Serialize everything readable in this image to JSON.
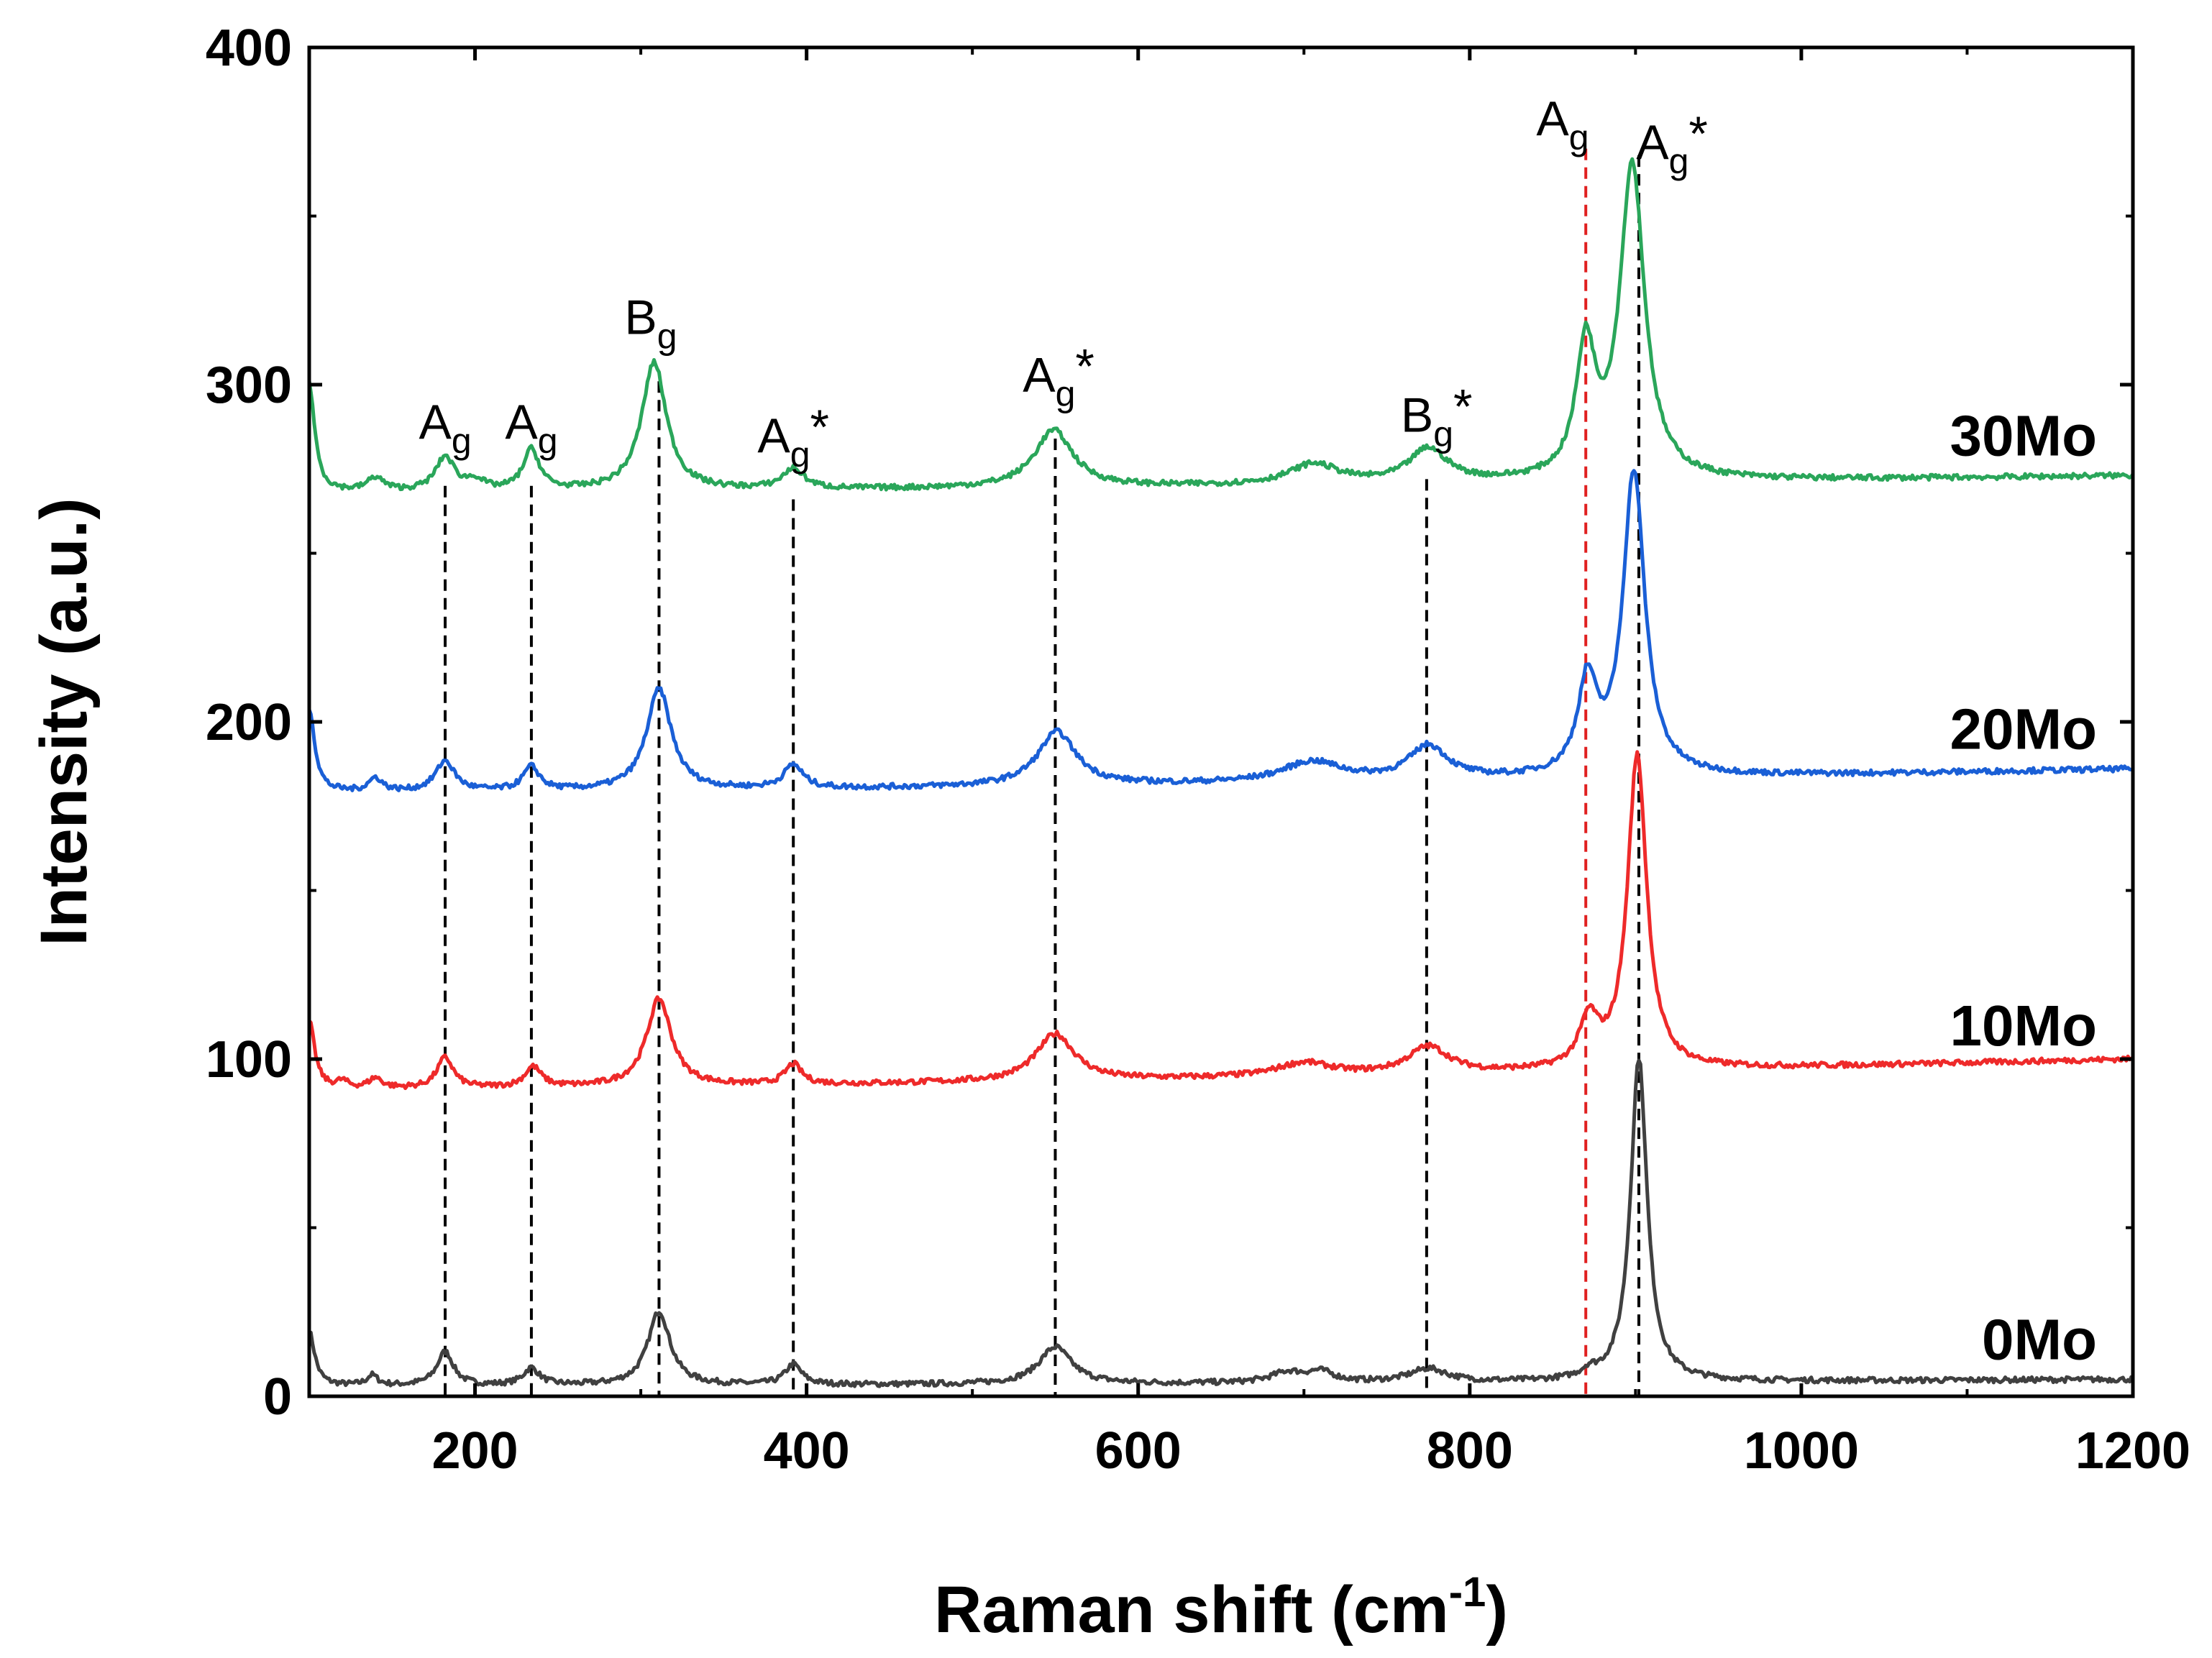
{
  "chart_data": {
    "type": "line",
    "xlabel": {
      "main": "Raman shift (cm",
      "sup": "-1",
      "close": ")"
    },
    "ylabel": "Intensity (a.u.)",
    "xlim": [
      100,
      1200
    ],
    "ylim": [
      0,
      400
    ],
    "x_ticks": [
      200,
      400,
      600,
      800,
      1000,
      1200
    ],
    "y_ticks": [
      0,
      100,
      200,
      300,
      400
    ],
    "grid": false,
    "series": [
      {
        "name": "0Mo",
        "color": "#404040",
        "baseline": 3,
        "end": 5,
        "peaks": [
          [
            100,
            16,
            4
          ],
          [
            138,
            3,
            4
          ],
          [
            182,
            10,
            6
          ],
          [
            234,
            5,
            6
          ],
          [
            311,
            22,
            8
          ],
          [
            392,
            6,
            6
          ],
          [
            550,
            11,
            12
          ],
          [
            690,
            3,
            12
          ],
          [
            710,
            3,
            10
          ],
          [
            775,
            4,
            14
          ],
          [
            872,
            2,
            5
          ],
          [
            902,
            96,
            6
          ]
        ]
      },
      {
        "name": "10Mo",
        "color": "#ee2a2a",
        "baseline": 91,
        "end": 100,
        "peaks": [
          [
            100,
            20,
            4
          ],
          [
            120,
            2,
            4
          ],
          [
            140,
            3,
            5
          ],
          [
            182,
            9,
            6
          ],
          [
            235,
            6,
            6
          ],
          [
            311,
            26,
            9
          ],
          [
            392,
            6,
            6
          ],
          [
            550,
            14,
            14
          ],
          [
            700,
            4,
            20
          ],
          [
            775,
            8,
            15
          ],
          [
            872,
            14,
            7
          ],
          [
            901,
            93,
            7
          ]
        ]
      },
      {
        "name": "20Mo",
        "color": "#1a5fd6",
        "baseline": 179,
        "end": 186,
        "peaks": [
          [
            100,
            25,
            4
          ],
          [
            140,
            4,
            5
          ],
          [
            182,
            9,
            7
          ],
          [
            234,
            7,
            6
          ],
          [
            311,
            30,
            9
          ],
          [
            392,
            7,
            7
          ],
          [
            551,
            16,
            14
          ],
          [
            705,
            6,
            22
          ],
          [
            775,
            10,
            14
          ],
          [
            871,
            27,
            7
          ],
          [
            899,
            90,
            8
          ]
        ]
      },
      {
        "name": "30Mo",
        "color": "#2aa65a",
        "baseline": 268,
        "end": 273,
        "peaks": [
          [
            100,
            32,
            4
          ],
          [
            140,
            4,
            6
          ],
          [
            182,
            10,
            7
          ],
          [
            200,
            3,
            6
          ],
          [
            234,
            12,
            6
          ],
          [
            308,
            38,
            9
          ],
          [
            392,
            6,
            8
          ],
          [
            549,
            17,
            14
          ],
          [
            706,
            6,
            18
          ],
          [
            775,
            10,
            14
          ],
          [
            870,
            38,
            7
          ],
          [
            898,
            93,
            9
          ]
        ]
      }
    ],
    "reference_lines": [
      {
        "x": 182,
        "color": "#000000"
      },
      {
        "x": 234,
        "color": "#000000"
      },
      {
        "x": 311,
        "color": "#000000"
      },
      {
        "x": 392,
        "color": "#000000"
      },
      {
        "x": 550,
        "color": "#000000"
      },
      {
        "x": 774,
        "color": "#000000"
      },
      {
        "x": 870,
        "color": "#e02020"
      },
      {
        "x": 902,
        "color": "#000000"
      }
    ],
    "peak_annotations": [
      {
        "base": "A",
        "sub": "g",
        "star": "",
        "x": 182,
        "y": 284
      },
      {
        "base": "A",
        "sub": "g",
        "star": "",
        "x": 234,
        "y": 284
      },
      {
        "base": "B",
        "sub": "g",
        "star": "",
        "x": 306,
        "y": 315
      },
      {
        "base": "A",
        "sub": "g",
        "star": "*",
        "x": 392,
        "y": 280
      },
      {
        "base": "A",
        "sub": "g",
        "star": "*",
        "x": 552,
        "y": 298
      },
      {
        "base": "B",
        "sub": "g",
        "star": "*",
        "x": 780,
        "y": 286
      },
      {
        "base": "A",
        "sub": "g",
        "star": "",
        "x": 856,
        "y": 374
      },
      {
        "base": "A",
        "sub": "g",
        "star": "*",
        "x": 922,
        "y": 367
      }
    ],
    "series_labels": [
      {
        "text": "30Mo",
        "y": 285
      },
      {
        "text": "20Mo",
        "y": 198
      },
      {
        "text": "10Mo",
        "y": 110
      },
      {
        "text": "0Mo",
        "y": 17
      }
    ]
  }
}
